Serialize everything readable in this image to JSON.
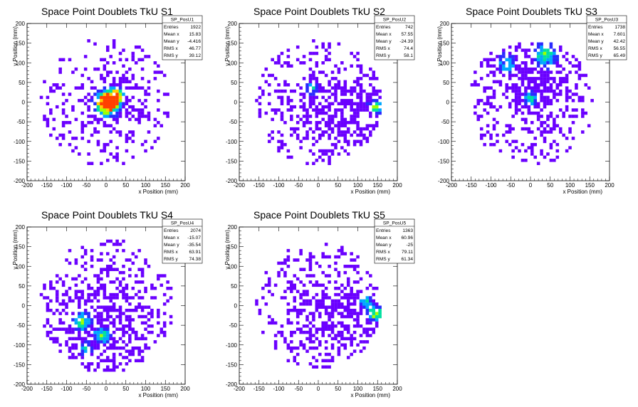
{
  "chart_data": [
    {
      "id": "p1",
      "type": "heatmap",
      "title": "Space Point Doublets TkU S1",
      "xlabel": "x Position (mm)",
      "ylabel": "y Position (mm)",
      "xlim": [
        -200,
        200
      ],
      "ylim": [
        -200,
        200
      ],
      "xticks": [
        -200,
        -150,
        -100,
        -50,
        0,
        50,
        100,
        150,
        200
      ],
      "yticks": [
        -200,
        -150,
        -100,
        -50,
        0,
        50,
        100,
        150,
        200
      ],
      "stats": {
        "name": "SP_PosU1",
        "rows": [
          {
            "label": "Entries",
            "value": "1922"
          },
          {
            "label": "Mean x",
            "value": "15.83"
          },
          {
            "label": "Mean y",
            "value": "-4.416"
          },
          {
            "label": "RMS x",
            "value": "46.77"
          },
          {
            "label": "RMS y",
            "value": "39.12"
          }
        ]
      },
      "n": 1922,
      "mean": [
        15.83,
        -4.416
      ],
      "rms": [
        46.77,
        39.12
      ],
      "radius": 165,
      "hot": [
        [
          0,
          -5,
          28,
          1.0
        ],
        [
          15,
          5,
          20,
          0.8
        ],
        [
          25,
          20,
          18,
          0.55
        ]
      ],
      "seed": 11
    },
    {
      "id": "p2",
      "type": "heatmap",
      "title": "Space Point Doublets TkU S2",
      "xlabel": "x Position (mm)",
      "ylabel": "y Position (mm)",
      "xlim": [
        -200,
        200
      ],
      "ylim": [
        -200,
        200
      ],
      "xticks": [
        -200,
        -150,
        -100,
        -50,
        0,
        50,
        100,
        150,
        200
      ],
      "yticks": [
        -200,
        -150,
        -100,
        -50,
        0,
        50,
        100,
        150,
        200
      ],
      "stats": {
        "name": "SP_PosU2",
        "rows": [
          {
            "label": "Entries",
            "value": "742"
          },
          {
            "label": "Mean x",
            "value": "57.55"
          },
          {
            "label": "Mean y",
            "value": "-24.39"
          },
          {
            "label": "RMS x",
            "value": "74.4"
          },
          {
            "label": "RMS y",
            "value": "58.1"
          }
        ]
      },
      "n": 742,
      "mean": [
        57.55,
        -24.39
      ],
      "rms": [
        74.4,
        58.1
      ],
      "radius": 160,
      "hot": [
        [
          145,
          -10,
          18,
          0.55
        ],
        [
          -15,
          35,
          15,
          0.45
        ]
      ],
      "seed": 22
    },
    {
      "id": "p3",
      "type": "heatmap",
      "title": "Space Point Doublets TkU S3",
      "xlabel": "x Position (mm)",
      "ylabel": "y Position (mm)",
      "xlim": [
        -200,
        200
      ],
      "ylim": [
        -200,
        200
      ],
      "xticks": [
        -200,
        -150,
        -100,
        -50,
        0,
        50,
        100,
        150,
        200
      ],
      "yticks": [
        -200,
        -150,
        -100,
        -50,
        0,
        50,
        100,
        150,
        200
      ],
      "stats": {
        "name": "SP_PosU3",
        "rows": [
          {
            "label": "Entries",
            "value": "1738"
          },
          {
            "label": "Mean x",
            "value": "7.601"
          },
          {
            "label": "Mean y",
            "value": "42.42"
          },
          {
            "label": "RMS x",
            "value": "56.55"
          },
          {
            "label": "RMS y",
            "value": "65.49"
          }
        ]
      },
      "n": 1738,
      "mean": [
        7.601,
        42.42
      ],
      "rms": [
        56.55,
        65.49
      ],
      "radius": 160,
      "hot": [
        [
          40,
          120,
          30,
          0.55
        ],
        [
          0,
          10,
          18,
          0.5
        ],
        [
          -60,
          100,
          25,
          0.4
        ]
      ],
      "seed": 33
    },
    {
      "id": "p4",
      "type": "heatmap",
      "title": "Space Point Doublets TkU S4",
      "xlabel": "x Position (mm)",
      "ylabel": "y Position (mm)",
      "xlim": [
        -200,
        200
      ],
      "ylim": [
        -200,
        200
      ],
      "xticks": [
        -200,
        -150,
        -100,
        -50,
        0,
        50,
        100,
        150,
        200
      ],
      "yticks": [
        -200,
        -150,
        -100,
        -50,
        0,
        50,
        100,
        150,
        200
      ],
      "stats": {
        "name": "SP_PosU4",
        "rows": [
          {
            "label": "Entries",
            "value": "2074"
          },
          {
            "label": "Mean x",
            "value": "-15.07"
          },
          {
            "label": "Mean y",
            "value": "-35.54"
          },
          {
            "label": "RMS x",
            "value": "63.91"
          },
          {
            "label": "RMS y",
            "value": "74.38"
          }
        ]
      },
      "n": 2074,
      "mean": [
        -15.07,
        -35.54
      ],
      "rms": [
        63.91,
        74.38
      ],
      "radius": 170,
      "hot": [
        [
          -60,
          -40,
          22,
          0.6
        ],
        [
          -10,
          -75,
          20,
          0.55
        ],
        [
          -55,
          -110,
          18,
          0.45
        ]
      ],
      "seed": 44
    },
    {
      "id": "p5",
      "type": "heatmap",
      "title": "Space Point Doublets TkU S5",
      "xlabel": "x Position (mm)",
      "ylabel": "y Position (mm)",
      "xlim": [
        -200,
        200
      ],
      "ylim": [
        -200,
        200
      ],
      "xticks": [
        -200,
        -150,
        -100,
        -50,
        0,
        50,
        100,
        150,
        200
      ],
      "yticks": [
        -200,
        -150,
        -100,
        -50,
        0,
        50,
        100,
        150,
        200
      ],
      "stats": {
        "name": "SP_PosU5",
        "rows": [
          {
            "label": "Entries",
            "value": "1363"
          },
          {
            "label": "Mean x",
            "value": "60.96"
          },
          {
            "label": "Mean y",
            "value": "-25"
          },
          {
            "label": "RMS x",
            "value": "79.11"
          },
          {
            "label": "RMS y",
            "value": "61.34"
          }
        ]
      },
      "n": 1363,
      "mean": [
        60.96,
        -25
      ],
      "rms": [
        79.11,
        61.34
      ],
      "radius": 160,
      "hot": [
        [
          145,
          -20,
          20,
          0.6
        ],
        [
          120,
          10,
          18,
          0.45
        ]
      ],
      "seed": 55
    }
  ],
  "colors": {
    "scale": [
      "#6a00ff",
      "#2a2aff",
      "#00a8ff",
      "#00e0a0",
      "#a0ff00",
      "#ffd000",
      "#ff4000"
    ],
    "frame": "#000000",
    "background": "#ffffff"
  }
}
